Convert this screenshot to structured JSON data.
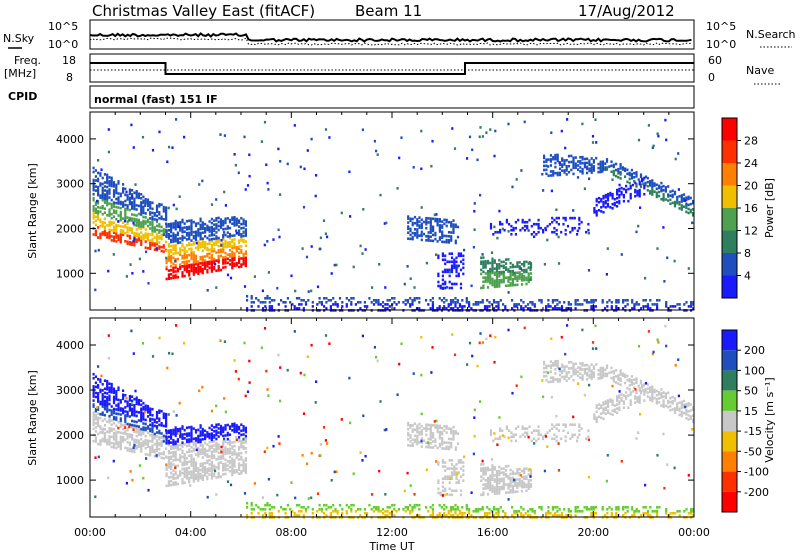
{
  "header": {
    "title": "Christmas Valley East (fitACF)",
    "beam": "Beam 11",
    "date": "17/Aug/2012"
  },
  "noise_panel": {
    "left_label": "N.Sky",
    "right_label": "N.Search",
    "left_ticks": [
      "10^5",
      "10^0"
    ],
    "right_ticks": [
      "10^5",
      "10^0"
    ]
  },
  "freq_panel": {
    "left_label_1": "Freq.",
    "left_label_2": "[MHz]",
    "right_label": "Nave",
    "left_ticks": [
      "18",
      "8"
    ],
    "right_ticks": [
      "60",
      "0"
    ]
  },
  "cpid": {
    "label": "CPID",
    "value": "normal (fast) 151 IF"
  },
  "colors": {
    "power": [
      "#1a1aff",
      "#1f4fbf",
      "#2f7f5f",
      "#4fa04f",
      "#f0c000",
      "#ff8000",
      "#ff3000",
      "#ff0000"
    ],
    "velocity": [
      "#1a1aff",
      "#1f4fbf",
      "#2f7f5f",
      "#66cc33",
      "#c8c8c8",
      "#f0c000",
      "#ff8000",
      "#ff3000",
      "#ff0000"
    ],
    "ground": "#c0c0c0"
  },
  "chart_data": [
    {
      "type": "heatmap",
      "name": "power",
      "xlabel": "",
      "ylabel": "Slant Range [km]",
      "x_ticks": [
        "00:00",
        "04:00",
        "08:00",
        "12:00",
        "16:00",
        "20:00",
        "00:00"
      ],
      "y_ticks": [
        "1000",
        "2000",
        "3000",
        "4000"
      ],
      "y_range": [
        180,
        4600
      ],
      "colorbar_label": "Power [dB]",
      "colorbar_ticks": [
        "28",
        "24",
        "20",
        "16",
        "12",
        "8",
        "4"
      ]
    },
    {
      "type": "heatmap",
      "name": "velocity",
      "xlabel": "Time UT",
      "ylabel": "Slant Range [km]",
      "x_ticks": [
        "00:00",
        "04:00",
        "08:00",
        "12:00",
        "16:00",
        "20:00",
        "00:00"
      ],
      "y_ticks": [
        "1000",
        "2000",
        "3000",
        "4000"
      ],
      "y_range": [
        180,
        4600
      ],
      "colorbar_label": "Velocity [m s⁻¹]",
      "colorbar_ticks": [
        "200",
        "100",
        "50",
        "15",
        "-15",
        "-50",
        "-100",
        "-200"
      ]
    }
  ],
  "xaxis_label": "Time UT"
}
